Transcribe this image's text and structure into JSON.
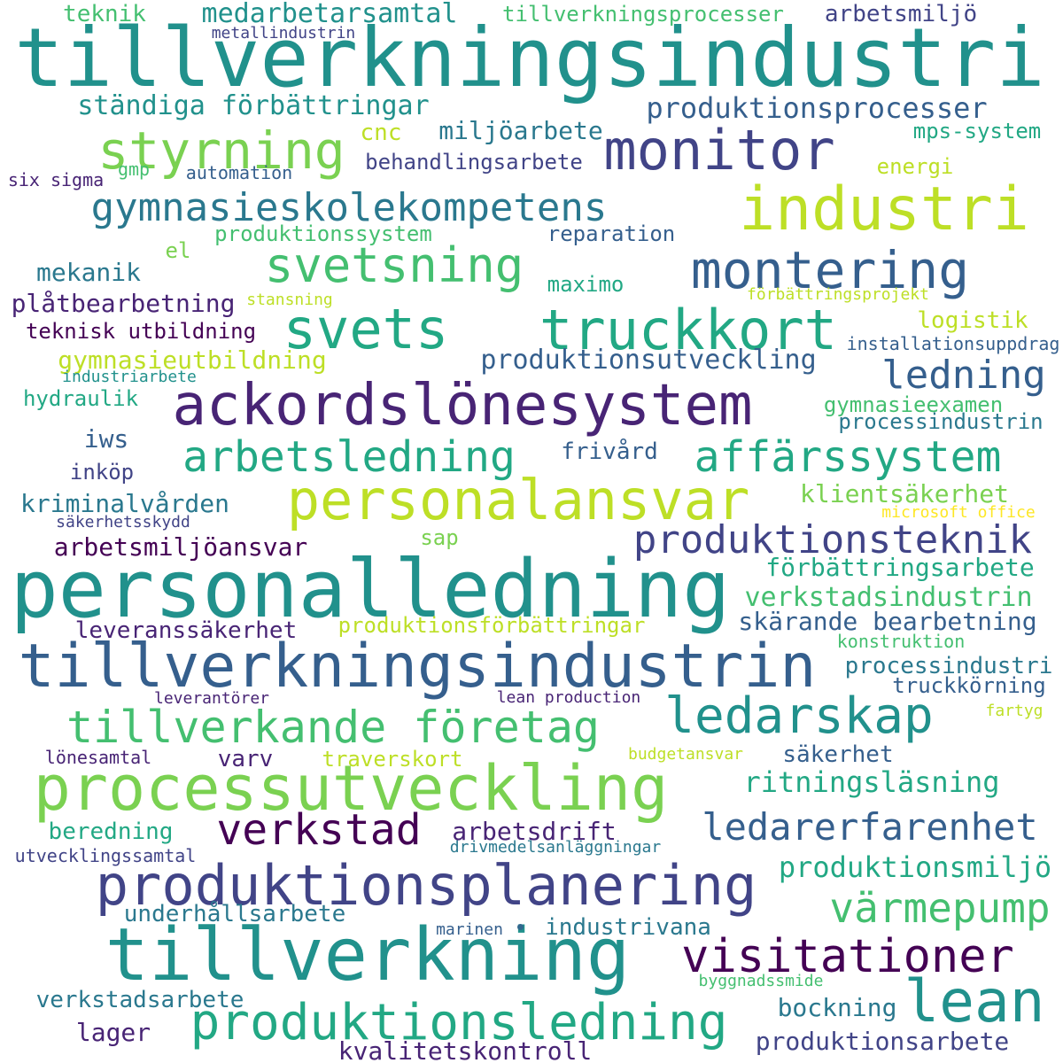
{
  "palette": {
    "a": "#440154",
    "b": "#482475",
    "c": "#414487",
    "d": "#355f8d",
    "e": "#2a788e",
    "f": "#21918c",
    "g": "#22a884",
    "h": "#44bf70",
    "i": "#7ad151",
    "j": "#bddf26",
    "k": "#fde725"
  },
  "words": [
    {
      "text": "tillverkningsindustri",
      "c": "f"
    },
    {
      "text": "teknik",
      "c": "h"
    },
    {
      "text": "medarbetarsamtal",
      "c": "f"
    },
    {
      "text": "tillverkningsprocesser",
      "c": "h"
    },
    {
      "text": "arbetsmiljö",
      "c": "c"
    },
    {
      "text": "metallindustrin",
      "c": "c"
    },
    {
      "text": "ständiga förbättringar",
      "c": "f"
    },
    {
      "text": "produktionsprocesser",
      "c": "d"
    },
    {
      "text": "styrning",
      "c": "i"
    },
    {
      "text": "monitor",
      "c": "c"
    },
    {
      "text": "cnc",
      "c": "j"
    },
    {
      "text": "miljöarbete",
      "c": "e"
    },
    {
      "text": "mps-system",
      "c": "g"
    },
    {
      "text": "gmp",
      "c": "h"
    },
    {
      "text": "automation",
      "c": "d"
    },
    {
      "text": "behandlingsarbete",
      "c": "c"
    },
    {
      "text": "energi",
      "c": "j"
    },
    {
      "text": "six sigma",
      "c": "b"
    },
    {
      "text": "industri",
      "c": "j"
    },
    {
      "text": "gymnasieskolekompetens",
      "c": "e"
    },
    {
      "text": "produktionssystem",
      "c": "h"
    },
    {
      "text": "reparation",
      "c": "d"
    },
    {
      "text": "el",
      "c": "i"
    },
    {
      "text": "svetsning",
      "c": "h"
    },
    {
      "text": "montering",
      "c": "d"
    },
    {
      "text": "mekanik",
      "c": "e"
    },
    {
      "text": "maximo",
      "c": "g"
    },
    {
      "text": "förbättringsprojekt",
      "c": "j"
    },
    {
      "text": "plåtbearbetning",
      "c": "b"
    },
    {
      "text": "stansning",
      "c": "j"
    },
    {
      "text": "svets",
      "c": "g"
    },
    {
      "text": "truckkort",
      "c": "g"
    },
    {
      "text": "logistik",
      "c": "j"
    },
    {
      "text": "teknisk utbildning",
      "c": "a"
    },
    {
      "text": "installationsuppdrag",
      "c": "d"
    },
    {
      "text": "gymnasieutbildning",
      "c": "j"
    },
    {
      "text": "produktionsutveckling",
      "c": "d"
    },
    {
      "text": "industriarbete",
      "c": "f"
    },
    {
      "text": "ledning",
      "c": "d"
    },
    {
      "text": "hydraulik",
      "c": "g"
    },
    {
      "text": "ackordslönesystem",
      "c": "b"
    },
    {
      "text": "gymnasieexamen",
      "c": "h"
    },
    {
      "text": "processindustrin",
      "c": "e"
    },
    {
      "text": "iws",
      "c": "d"
    },
    {
      "text": "arbetsledning",
      "c": "g"
    },
    {
      "text": "frivård",
      "c": "d"
    },
    {
      "text": "affärssystem",
      "c": "g"
    },
    {
      "text": "inköp",
      "c": "c"
    },
    {
      "text": "personalansvar",
      "c": "j"
    },
    {
      "text": "klientsäkerhet",
      "c": "i"
    },
    {
      "text": "kriminalvården",
      "c": "e"
    },
    {
      "text": "microsoft office",
      "c": "k"
    },
    {
      "text": "säkerhetsskydd",
      "c": "c"
    },
    {
      "text": "sap",
      "c": "i"
    },
    {
      "text": "arbetsmiljöansvar",
      "c": "a"
    },
    {
      "text": "produktionsteknik",
      "c": "c"
    },
    {
      "text": "förbättringsarbete",
      "c": "g"
    },
    {
      "text": "personalledning",
      "c": "f"
    },
    {
      "text": "verkstadsindustrin",
      "c": "h"
    },
    {
      "text": "leveranssäkerhet",
      "c": "b"
    },
    {
      "text": "produktionsförbättringar",
      "c": "j"
    },
    {
      "text": "skärande bearbetning",
      "c": "d"
    },
    {
      "text": "konstruktion",
      "c": "h"
    },
    {
      "text": "tillverkningsindustrin",
      "c": "d"
    },
    {
      "text": "processindustri",
      "c": "e"
    },
    {
      "text": "truckkörning",
      "c": "d"
    },
    {
      "text": "leverantörer",
      "c": "b"
    },
    {
      "text": "lean production",
      "c": "b"
    },
    {
      "text": "fartyg",
      "c": "j"
    },
    {
      "text": "tillverkande företag",
      "c": "h"
    },
    {
      "text": "ledarskap",
      "c": "f"
    },
    {
      "text": "lönesamtal",
      "c": "b"
    },
    {
      "text": "varv",
      "c": "b"
    },
    {
      "text": "traverskort",
      "c": "j"
    },
    {
      "text": "budgetansvar",
      "c": "j"
    },
    {
      "text": "säkerhet",
      "c": "d"
    },
    {
      "text": "processutveckling",
      "c": "i"
    },
    {
      "text": "ritningsläsning",
      "c": "g"
    },
    {
      "text": "verkstad",
      "c": "a"
    },
    {
      "text": "beredning",
      "c": "g"
    },
    {
      "text": "arbetsdrift",
      "c": "b"
    },
    {
      "text": "ledarerfarenhet",
      "c": "d"
    },
    {
      "text": "utvecklingssamtal",
      "c": "c"
    },
    {
      "text": "drivmedelsanläggningar",
      "c": "e"
    },
    {
      "text": "produktionsplanering",
      "c": "c"
    },
    {
      "text": "produktionsmiljö",
      "c": "g"
    },
    {
      "text": "underhållsarbete",
      "c": "e"
    },
    {
      "text": "värmepump",
      "c": "h"
    },
    {
      "text": "marinen",
      "c": "d"
    },
    {
      "text": "industrivana",
      "c": "e"
    },
    {
      "text": "tillverkning",
      "c": "f"
    },
    {
      "text": "visitationer",
      "c": "a"
    },
    {
      "text": "lean",
      "c": "f"
    },
    {
      "text": "byggnadssmide",
      "c": "h"
    },
    {
      "text": "verkstadsarbete",
      "c": "e"
    },
    {
      "text": "produktionsledning",
      "c": "g"
    },
    {
      "text": "bockning",
      "c": "e"
    },
    {
      "text": "lager",
      "c": "b"
    },
    {
      "text": "kvalitetskontroll",
      "c": "b"
    },
    {
      "text": "produktionsarbete",
      "c": "c"
    }
  ]
}
